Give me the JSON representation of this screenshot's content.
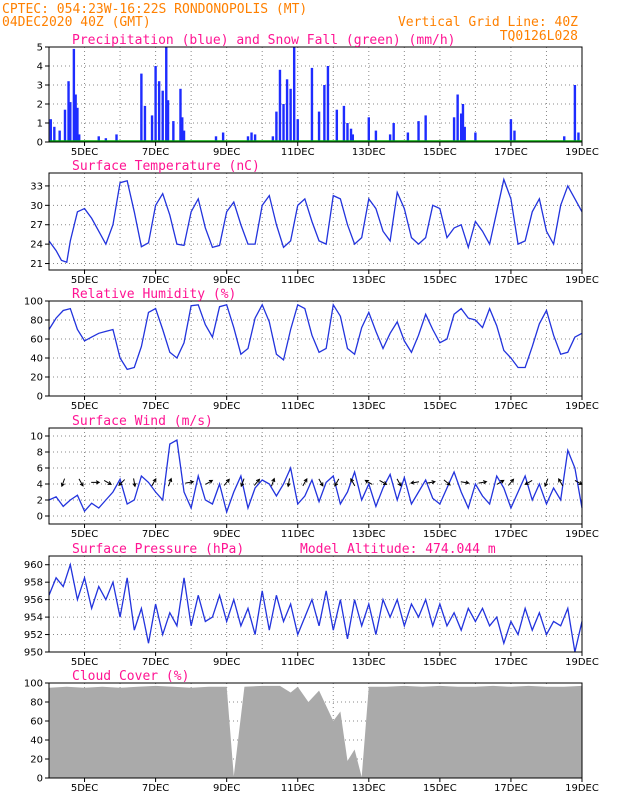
{
  "header": {
    "line1_left": "CPTEC:   054:23W-16:22S   RONDONOPOLIS (MT)",
    "line2_left": "04DEC2020 40Z (GMT)",
    "line2_right": "Vertical Grid Line: 40Z",
    "line3_right": "TQ0126L028"
  },
  "colors": {
    "header_text": "#ff8000",
    "panel_title": "#ff1493",
    "line": "#2233dd",
    "precip": "#1e2cff",
    "snow": "#00aa00",
    "cloud": "#aaaaaa",
    "grid": "#888888"
  },
  "x_axis": {
    "start_day": 4,
    "end_day": 19,
    "tick_labels": [
      "5DEC",
      "7DEC",
      "9DEC",
      "11DEC",
      "13DEC",
      "15DEC",
      "17DEC",
      "19DEC"
    ],
    "tick_days": [
      5,
      7,
      9,
      11,
      13,
      15,
      17,
      19
    ],
    "grid_days": [
      5,
      6,
      7,
      8,
      9,
      10,
      11,
      12,
      13,
      14,
      15,
      16,
      17,
      18,
      19
    ]
  },
  "chart_data": [
    {
      "type": "bar",
      "title": "Precipitation (blue) and Snow Fall (green) (mm/h)",
      "ylim": [
        0,
        5
      ],
      "yticks": [
        0,
        1,
        2,
        3,
        4,
        5
      ],
      "series": [
        {
          "name": "Precipitation",
          "x_day": [
            4.05,
            4.15,
            4.3,
            4.45,
            4.55,
            4.6,
            4.7,
            4.75,
            4.8,
            4.85,
            5.4,
            5.6,
            5.9,
            6.6,
            6.7,
            6.9,
            7.0,
            7.1,
            7.2,
            7.3,
            7.35,
            7.5,
            7.7,
            7.75,
            7.8,
            8.7,
            8.9,
            9.6,
            9.7,
            9.8,
            10.3,
            10.4,
            10.5,
            10.6,
            10.7,
            10.8,
            10.9,
            11.0,
            11.4,
            11.6,
            11.75,
            11.85,
            12.1,
            12.3,
            12.4,
            12.5,
            12.55,
            13.0,
            13.2,
            13.6,
            13.7,
            14.1,
            14.4,
            14.6,
            15.4,
            15.5,
            15.6,
            15.65,
            15.7,
            16.0,
            17.0,
            17.1,
            18.5,
            18.8,
            18.9
          ],
          "values": [
            1.2,
            0.8,
            0.6,
            1.7,
            3.2,
            2.1,
            4.9,
            2.5,
            1.8,
            0.4,
            0.3,
            0.2,
            0.4,
            3.6,
            1.9,
            1.4,
            4.0,
            3.2,
            2.7,
            5.0,
            2.2,
            1.1,
            2.8,
            1.3,
            0.6,
            0.3,
            0.5,
            0.3,
            0.5,
            0.4,
            0.3,
            1.6,
            3.8,
            2.0,
            3.3,
            2.8,
            5.0,
            1.2,
            3.9,
            1.6,
            3.0,
            4.0,
            1.7,
            1.9,
            1.0,
            0.7,
            0.4,
            1.3,
            0.6,
            0.4,
            1.0,
            0.5,
            1.1,
            1.4,
            1.3,
            2.5,
            1.5,
            2.0,
            0.8,
            0.5,
            1.2,
            0.6,
            0.3,
            3.0,
            0.5
          ]
        },
        {
          "name": "Snow Fall",
          "values": [
            0,
            0
          ]
        }
      ]
    },
    {
      "type": "line",
      "title": "Surface Temperature (nC)",
      "ylim": [
        20,
        35
      ],
      "yticks": [
        21,
        24,
        27,
        30,
        33
      ],
      "x_day": [
        4.0,
        4.2,
        4.35,
        4.5,
        4.6,
        4.8,
        5.0,
        5.2,
        5.4,
        5.6,
        5.8,
        6.0,
        6.2,
        6.4,
        6.6,
        6.8,
        7.0,
        7.2,
        7.4,
        7.6,
        7.8,
        8.0,
        8.2,
        8.4,
        8.6,
        8.8,
        9.0,
        9.2,
        9.4,
        9.6,
        9.8,
        10.0,
        10.2,
        10.4,
        10.6,
        10.8,
        11.0,
        11.2,
        11.4,
        11.6,
        11.8,
        12.0,
        12.2,
        12.4,
        12.6,
        12.8,
        13.0,
        13.2,
        13.4,
        13.6,
        13.8,
        14.0,
        14.2,
        14.4,
        14.6,
        14.8,
        15.0,
        15.2,
        15.4,
        15.6,
        15.8,
        16.0,
        16.2,
        16.4,
        16.6,
        16.8,
        17.0,
        17.2,
        17.4,
        17.6,
        17.8,
        18.0,
        18.2,
        18.4,
        18.6,
        18.8,
        19.0
      ],
      "values": [
        24.5,
        23.0,
        21.5,
        21.2,
        24.5,
        29.0,
        29.5,
        28.0,
        26.0,
        24.0,
        27.0,
        33.5,
        33.8,
        29.0,
        23.6,
        24.2,
        30.0,
        31.8,
        28.5,
        24.0,
        23.8,
        29.0,
        31.0,
        26.5,
        23.5,
        23.8,
        29.0,
        30.5,
        27.0,
        24.0,
        24.0,
        30.0,
        31.5,
        27.0,
        23.5,
        24.5,
        30.0,
        31.0,
        27.5,
        24.5,
        24.0,
        31.5,
        31.0,
        27.0,
        24.0,
        25.0,
        31.0,
        29.5,
        26.0,
        24.5,
        32.0,
        29.5,
        25.0,
        24.0,
        25.0,
        30.0,
        29.5,
        25.0,
        26.5,
        27.0,
        23.5,
        27.5,
        26.0,
        24.0,
        29.0,
        34.0,
        31.0,
        24.0,
        24.5,
        29.0,
        31.0,
        26.0,
        24.0,
        30.0,
        33.0,
        31.0,
        29.0
      ]
    },
    {
      "type": "line",
      "title": "Relative Humidity (%)",
      "ylim": [
        0,
        100
      ],
      "yticks": [
        0,
        20,
        40,
        60,
        80,
        100
      ],
      "x_day": [
        4.0,
        4.2,
        4.4,
        4.6,
        4.8,
        5.0,
        5.2,
        5.4,
        5.6,
        5.8,
        6.0,
        6.2,
        6.4,
        6.6,
        6.8,
        7.0,
        7.2,
        7.4,
        7.6,
        7.8,
        8.0,
        8.2,
        8.4,
        8.6,
        8.8,
        9.0,
        9.2,
        9.4,
        9.6,
        9.8,
        10.0,
        10.2,
        10.4,
        10.6,
        10.8,
        11.0,
        11.2,
        11.4,
        11.6,
        11.8,
        12.0,
        12.2,
        12.4,
        12.6,
        12.8,
        13.0,
        13.2,
        13.4,
        13.6,
        13.8,
        14.0,
        14.2,
        14.4,
        14.6,
        14.8,
        15.0,
        15.2,
        15.4,
        15.6,
        15.8,
        16.0,
        16.2,
        16.4,
        16.6,
        16.8,
        17.0,
        17.2,
        17.4,
        17.6,
        17.8,
        18.0,
        18.2,
        18.4,
        18.6,
        18.8,
        19.0
      ],
      "values": [
        70,
        82,
        90,
        92,
        70,
        58,
        62,
        66,
        68,
        70,
        40,
        28,
        30,
        52,
        88,
        92,
        70,
        46,
        40,
        56,
        95,
        96,
        75,
        62,
        94,
        96,
        72,
        44,
        50,
        82,
        96,
        78,
        44,
        38,
        70,
        96,
        92,
        64,
        46,
        50,
        96,
        84,
        50,
        44,
        72,
        88,
        68,
        50,
        66,
        78,
        58,
        46,
        64,
        86,
        70,
        56,
        60,
        86,
        92,
        82,
        80,
        72,
        92,
        74,
        48,
        40,
        30,
        30,
        52,
        76,
        90,
        64,
        44,
        46,
        62,
        66
      ]
    },
    {
      "type": "line",
      "title": "Surface Wind (m/s)",
      "ylim": [
        -1,
        11
      ],
      "yticks": [
        0,
        2,
        4,
        6,
        8,
        10
      ],
      "x_day": [
        4.0,
        4.2,
        4.4,
        4.6,
        4.8,
        5.0,
        5.2,
        5.4,
        5.6,
        5.8,
        6.0,
        6.2,
        6.4,
        6.6,
        6.8,
        7.0,
        7.2,
        7.4,
        7.6,
        7.8,
        8.0,
        8.2,
        8.4,
        8.6,
        8.8,
        9.0,
        9.2,
        9.4,
        9.6,
        9.8,
        10.0,
        10.2,
        10.4,
        10.6,
        10.8,
        11.0,
        11.2,
        11.4,
        11.6,
        11.8,
        12.0,
        12.2,
        12.4,
        12.6,
        12.8,
        13.0,
        13.2,
        13.4,
        13.6,
        13.8,
        14.0,
        14.2,
        14.4,
        14.6,
        14.8,
        15.0,
        15.2,
        15.4,
        15.6,
        15.8,
        16.0,
        16.2,
        16.4,
        16.6,
        16.8,
        17.0,
        17.2,
        17.4,
        17.6,
        17.8,
        18.0,
        18.2,
        18.4,
        18.6,
        18.8,
        19.0
      ],
      "values": [
        2.0,
        2.4,
        1.2,
        2.0,
        2.6,
        0.6,
        1.6,
        1.0,
        2.0,
        3.0,
        4.6,
        1.5,
        2.0,
        5.0,
        4.2,
        3.0,
        2.0,
        9.0,
        9.5,
        3.0,
        1.0,
        5.0,
        2.0,
        1.5,
        4.0,
        0.5,
        3.0,
        5.0,
        1.0,
        3.5,
        4.5,
        4.0,
        2.5,
        4.0,
        6.0,
        1.5,
        2.5,
        4.5,
        1.8,
        4.2,
        5.0,
        1.5,
        3.0,
        5.5,
        2.0,
        4.0,
        1.2,
        3.5,
        5.2,
        2.0,
        4.8,
        1.5,
        3.0,
        4.5,
        2.2,
        1.5,
        3.5,
        5.5,
        3.0,
        1.0,
        4.0,
        2.5,
        1.5,
        5.0,
        3.5,
        1.0,
        3.0,
        5.0,
        2.0,
        4.0,
        1.5,
        3.5,
        2.0,
        8.2,
        6.0,
        1.0
      ],
      "wind_dir_day": [
        4.4,
        4.9,
        5.3,
        5.65,
        6.05,
        6.4,
        6.95,
        7.4,
        7.95,
        8.5,
        9.0,
        9.45,
        9.85,
        10.3,
        10.75,
        11.2,
        11.65,
        12.1,
        12.55,
        13.0,
        13.4,
        13.85,
        14.3,
        14.75,
        15.2,
        15.7,
        16.2,
        16.7,
        17.0,
        17.5,
        18.0,
        18.4,
        18.9
      ],
      "wind_dir_deg": [
        200,
        150,
        90,
        120,
        225,
        170,
        30,
        20,
        80,
        60,
        40,
        200,
        40,
        20,
        190,
        30,
        150,
        210,
        330,
        300,
        120,
        150,
        260,
        80,
        130,
        100,
        80,
        60,
        40,
        240,
        200,
        330,
        120
      ]
    },
    {
      "type": "line",
      "title": "Surface Pressure (hPa)",
      "annotation": "Model Altitude: 474.044 m",
      "ylim": [
        950,
        961
      ],
      "yticks": [
        950,
        952,
        954,
        956,
        958,
        960
      ],
      "x_day": [
        4.0,
        4.2,
        4.4,
        4.6,
        4.8,
        5.0,
        5.2,
        5.4,
        5.6,
        5.8,
        6.0,
        6.2,
        6.4,
        6.6,
        6.8,
        7.0,
        7.2,
        7.4,
        7.6,
        7.8,
        8.0,
        8.2,
        8.4,
        8.6,
        8.8,
        9.0,
        9.2,
        9.4,
        9.6,
        9.8,
        10.0,
        10.2,
        10.4,
        10.6,
        10.8,
        11.0,
        11.2,
        11.4,
        11.6,
        11.8,
        12.0,
        12.2,
        12.4,
        12.6,
        12.8,
        13.0,
        13.2,
        13.4,
        13.6,
        13.8,
        14.0,
        14.2,
        14.4,
        14.6,
        14.8,
        15.0,
        15.2,
        15.4,
        15.6,
        15.8,
        16.0,
        16.2,
        16.4,
        16.6,
        16.8,
        17.0,
        17.2,
        17.4,
        17.6,
        17.8,
        18.0,
        18.2,
        18.4,
        18.6,
        18.8,
        19.0
      ],
      "values": [
        956.5,
        958.5,
        957.5,
        960.0,
        956.0,
        958.5,
        955.0,
        957.5,
        956.0,
        958.0,
        954.0,
        958.5,
        952.5,
        955.0,
        951.0,
        955.5,
        952.0,
        954.5,
        953.0,
        958.5,
        953.0,
        956.5,
        953.5,
        954.0,
        956.5,
        953.5,
        956.0,
        953.0,
        955.0,
        952.0,
        957.0,
        952.5,
        956.5,
        953.5,
        955.5,
        952.0,
        954.0,
        956.0,
        953.0,
        957.0,
        952.5,
        956.0,
        951.5,
        956.0,
        953.0,
        955.5,
        952.0,
        956.0,
        954.0,
        956.0,
        953.0,
        955.5,
        954.0,
        956.0,
        953.0,
        955.5,
        953.0,
        954.5,
        952.5,
        955.0,
        953.5,
        955.0,
        953.0,
        954.0,
        951.0,
        953.5,
        952.0,
        955.0,
        952.5,
        954.5,
        952.0,
        953.5,
        953.0,
        955.0,
        950.0,
        953.5
      ]
    },
    {
      "type": "area",
      "title": "Cloud Cover (%)",
      "ylim": [
        0,
        100
      ],
      "yticks": [
        0,
        20,
        40,
        60,
        80,
        100
      ],
      "x_day": [
        4.0,
        4.5,
        5.0,
        5.5,
        6.0,
        6.5,
        7.0,
        7.5,
        8.0,
        8.5,
        9.0,
        9.2,
        9.5,
        10.0,
        10.5,
        10.8,
        11.0,
        11.3,
        11.6,
        12.0,
        12.2,
        12.4,
        12.6,
        12.8,
        13.0,
        13.5,
        14.0,
        14.5,
        15.0,
        15.5,
        16.0,
        16.5,
        17.0,
        17.5,
        18.0,
        18.5,
        19.0
      ],
      "values": [
        95,
        96,
        95,
        96,
        95,
        96,
        97,
        96,
        95,
        96,
        96,
        2,
        96,
        97,
        97,
        90,
        96,
        80,
        92,
        60,
        70,
        18,
        30,
        1,
        96,
        96,
        97,
        96,
        97,
        96,
        96,
        97,
        96,
        97,
        96,
        96,
        97
      ]
    }
  ]
}
